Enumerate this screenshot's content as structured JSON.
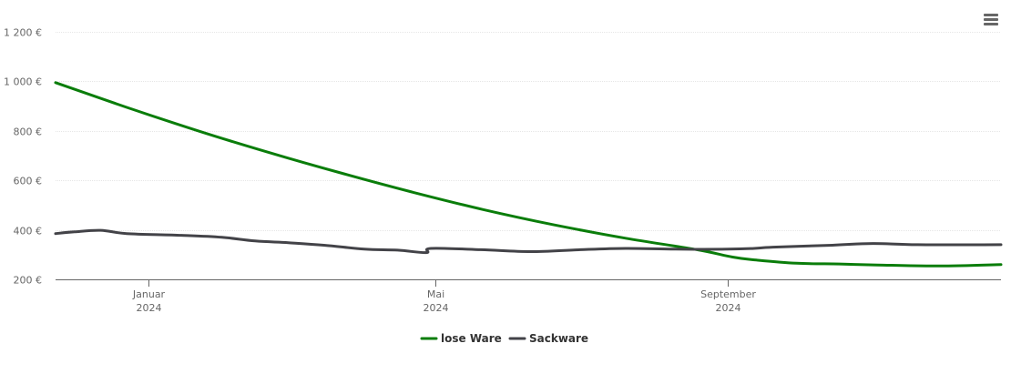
{
  "chart_data": {
    "type": "line",
    "title": "",
    "xlabel": "",
    "ylabel": "",
    "ylim": [
      200,
      1200
    ],
    "yticks": [
      200,
      400,
      600,
      800,
      1000,
      1200
    ],
    "ytick_labels": [
      "200 €",
      "400 €",
      "600 €",
      "800 €",
      "1 000 €",
      "1 200 €"
    ],
    "xlim": [
      "2023-11-23",
      "2024-12-25"
    ],
    "xticks": [
      {
        "date": "2024-01-01",
        "label": "Januar",
        "year": "2024"
      },
      {
        "date": "2024-05-01",
        "label": "Mai",
        "year": "2024"
      },
      {
        "date": "2024-09-01",
        "label": "September",
        "year": "2024"
      }
    ],
    "grid": true,
    "legend_position": "bottom-center",
    "series": [
      {
        "name": "lose Ware",
        "color": "#0a7d0a",
        "points": [
          {
            "x": "2023-11-23",
            "y": 995
          },
          {
            "x": "2023-12-23",
            "y": 895
          },
          {
            "x": "2024-01-22",
            "y": 800
          },
          {
            "x": "2024-02-21",
            "y": 712
          },
          {
            "x": "2024-03-22",
            "y": 630
          },
          {
            "x": "2024-04-21",
            "y": 553
          },
          {
            "x": "2024-05-21",
            "y": 482
          },
          {
            "x": "2024-06-20",
            "y": 420
          },
          {
            "x": "2024-07-20",
            "y": 366
          },
          {
            "x": "2024-08-19",
            "y": 320
          },
          {
            "x": "2024-09-03",
            "y": 290
          },
          {
            "x": "2024-09-13",
            "y": 278
          },
          {
            "x": "2024-09-30",
            "y": 265
          },
          {
            "x": "2024-10-18",
            "y": 262
          },
          {
            "x": "2024-11-03",
            "y": 258
          },
          {
            "x": "2024-11-29",
            "y": 254
          },
          {
            "x": "2024-12-25",
            "y": 260
          }
        ]
      },
      {
        "name": "Sackware",
        "color": "#434348",
        "points": [
          {
            "x": "2023-11-23",
            "y": 385
          },
          {
            "x": "2023-12-01",
            "y": 392
          },
          {
            "x": "2023-12-12",
            "y": 398
          },
          {
            "x": "2023-12-23",
            "y": 385
          },
          {
            "x": "2024-01-15",
            "y": 378
          },
          {
            "x": "2024-02-01",
            "y": 370
          },
          {
            "x": "2024-02-15",
            "y": 355
          },
          {
            "x": "2024-02-29",
            "y": 348
          },
          {
            "x": "2024-03-15",
            "y": 338
          },
          {
            "x": "2024-04-01",
            "y": 322
          },
          {
            "x": "2024-04-15",
            "y": 318
          },
          {
            "x": "2024-04-27",
            "y": 308
          },
          {
            "x": "2024-04-29",
            "y": 325
          },
          {
            "x": "2024-05-20",
            "y": 320
          },
          {
            "x": "2024-06-10",
            "y": 312
          },
          {
            "x": "2024-07-01",
            "y": 320
          },
          {
            "x": "2024-07-20",
            "y": 325
          },
          {
            "x": "2024-08-10",
            "y": 322
          },
          {
            "x": "2024-09-01",
            "y": 322
          },
          {
            "x": "2024-09-12",
            "y": 325
          },
          {
            "x": "2024-09-20",
            "y": 330
          },
          {
            "x": "2024-10-15",
            "y": 338
          },
          {
            "x": "2024-11-01",
            "y": 345
          },
          {
            "x": "2024-11-20",
            "y": 340
          },
          {
            "x": "2024-12-25",
            "y": 340
          }
        ]
      }
    ]
  },
  "menu": {
    "icon": "hamburger-menu-icon"
  }
}
